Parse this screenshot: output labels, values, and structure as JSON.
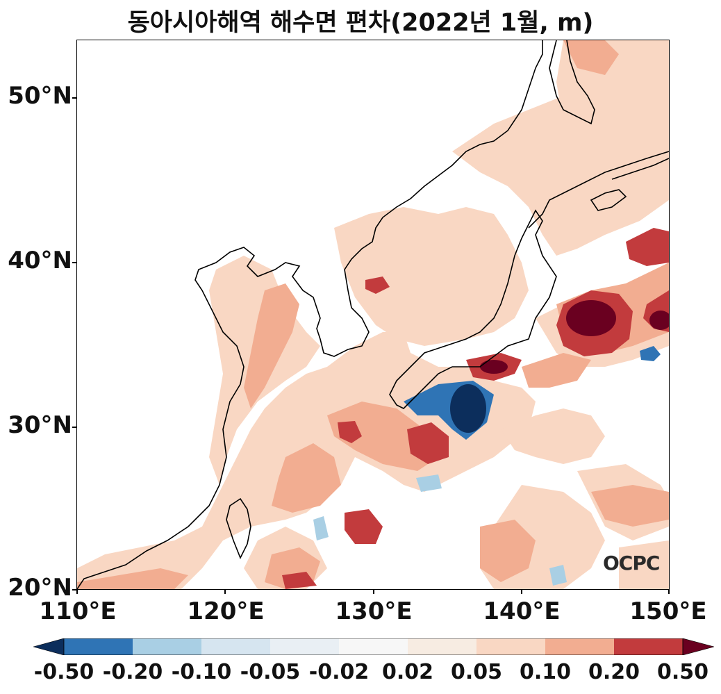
{
  "title": "동아시아해역 해수면 편차(2022년 1월, m)",
  "latitude_labels": [
    "50°N",
    "40°N",
    "30°N",
    "20°N"
  ],
  "longitude_labels": [
    "110°E",
    "120°E",
    "130°E",
    "140°E",
    "150°E"
  ],
  "colorbar": {
    "labels": [
      "-0.50",
      "-0.20",
      "-0.10",
      "-0.05",
      "-0.02",
      "0.02",
      "0.05",
      "0.10",
      "0.20",
      "0.50"
    ],
    "colors": [
      "#2f74b5",
      "#a9cfe4",
      "#d6e5f0",
      "#e9eff4",
      "#f7f7f7",
      "#f7ece2",
      "#f9d7c3",
      "#f2ad91",
      "#c23b3d"
    ],
    "under_color": "#0c2e5c",
    "over_color": "#6a0020"
  },
  "logo": "OCPC"
}
